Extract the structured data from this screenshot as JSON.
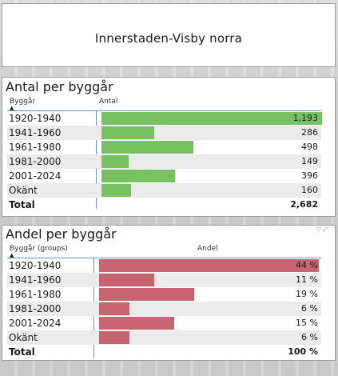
{
  "title": "Innerstaden-Visby norra",
  "table1": {
    "heading": "Antal per byggår",
    "col1": "Byggår",
    "col2": "Antal",
    "bar_color": "#77c163",
    "max": 1193,
    "rows": [
      {
        "label": "1920-1940",
        "value": 1193,
        "display": "1,193"
      },
      {
        "label": "1941-1960",
        "value": 286,
        "display": "286"
      },
      {
        "label": "1961-1980",
        "value": 498,
        "display": "498"
      },
      {
        "label": "1981-2000",
        "value": 149,
        "display": "149"
      },
      {
        "label": "2001-2024",
        "value": 396,
        "display": "396"
      },
      {
        "label": "Okänt",
        "value": 160,
        "display": "160"
      }
    ],
    "total_label": "Total",
    "total_value": "2,682"
  },
  "table2": {
    "heading": "Andel per byggår",
    "col1": "Byggår (groups)",
    "col2": "Andel",
    "bar_color": "#c8646f",
    "max": 44,
    "rows": [
      {
        "label": "1920-1940",
        "value": 44,
        "display": "44 %"
      },
      {
        "label": "1941-1960",
        "value": 11,
        "display": "11 %"
      },
      {
        "label": "1961-1980",
        "value": 19,
        "display": "19 %"
      },
      {
        "label": "1981-2000",
        "value": 6,
        "display": "6 %"
      },
      {
        "label": "2001-2024",
        "value": 15,
        "display": "15 %"
      },
      {
        "label": "Okänt",
        "value": 6,
        "display": "6 %"
      }
    ],
    "total_label": "Total",
    "total_value": "100 %"
  }
}
